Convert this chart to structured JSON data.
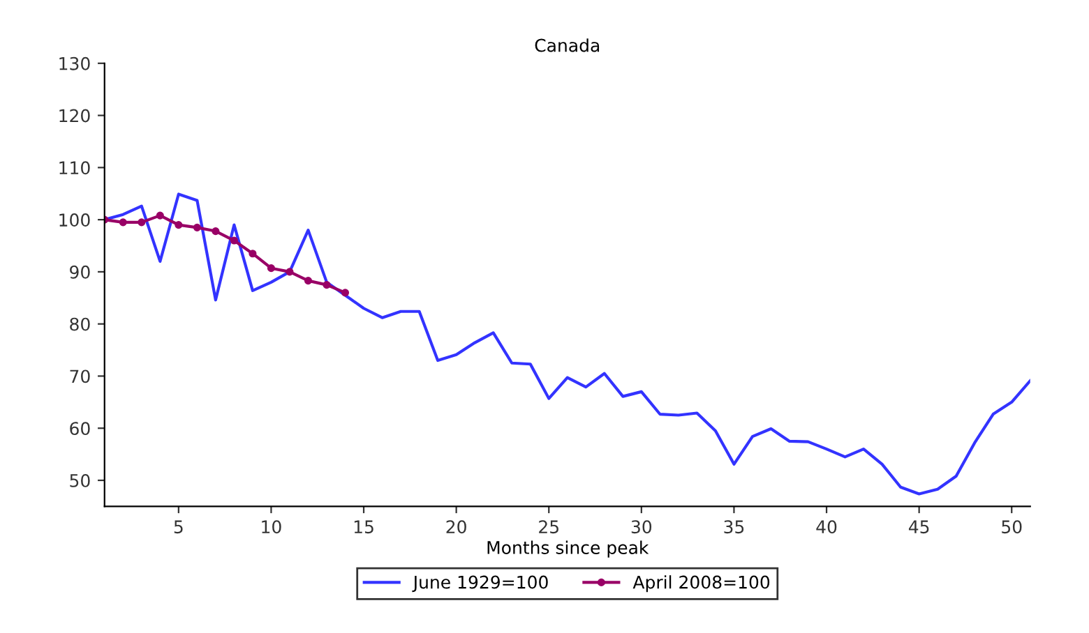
{
  "chart_data": {
    "type": "line",
    "title": "Canada",
    "xlabel": "Months since peak",
    "x": [
      1,
      2,
      3,
      4,
      5,
      6,
      7,
      8,
      9,
      10,
      11,
      12,
      13,
      14,
      15,
      16,
      17,
      18,
      19,
      20,
      21,
      22,
      23,
      24,
      25,
      26,
      27,
      28,
      29,
      30,
      31,
      32,
      33,
      34,
      35,
      36,
      37,
      38,
      39,
      40,
      41,
      42,
      43,
      44,
      45,
      46,
      47,
      48,
      49,
      50,
      51
    ],
    "series": [
      {
        "name": "June 1929=100",
        "color": "#3333ff",
        "marker": "none",
        "values": [
          100,
          101,
          102.6,
          92,
          104.9,
          103.7,
          84.6,
          99,
          86.4,
          88,
          90,
          98,
          88,
          85.5,
          83,
          81.2,
          82.4,
          82.4,
          73,
          74.1,
          76.4,
          78.3,
          72.5,
          72.3,
          65.7,
          69.7,
          67.9,
          70.5,
          66.1,
          67,
          62.7,
          62.5,
          62.9,
          59.5,
          53.1,
          58.4,
          59.9,
          57.5,
          57.4,
          56,
          54.5,
          56,
          53.1,
          48.7,
          47.4,
          48.3,
          50.8,
          57.2,
          62.7,
          65,
          69.1
        ]
      },
      {
        "name": "April 2008=100",
        "color": "#990066",
        "marker": "circle",
        "x": [
          1,
          2,
          3,
          4,
          5,
          6,
          7,
          8,
          9,
          10,
          11,
          12,
          13,
          14
        ],
        "values": [
          100,
          99.5,
          99.5,
          100.8,
          99,
          98.5,
          97.8,
          96,
          93.5,
          90.7,
          90,
          88.3,
          87.5,
          86
        ]
      }
    ],
    "xlim": [
      1,
      51
    ],
    "xticks": [
      5,
      10,
      15,
      20,
      25,
      30,
      35,
      40,
      45,
      50
    ],
    "ylim": [
      45,
      130
    ],
    "yticks": [
      50,
      60,
      70,
      80,
      90,
      100,
      110,
      120,
      130
    ],
    "legend": "bottom",
    "grid": false,
    "line_style": "solid"
  }
}
